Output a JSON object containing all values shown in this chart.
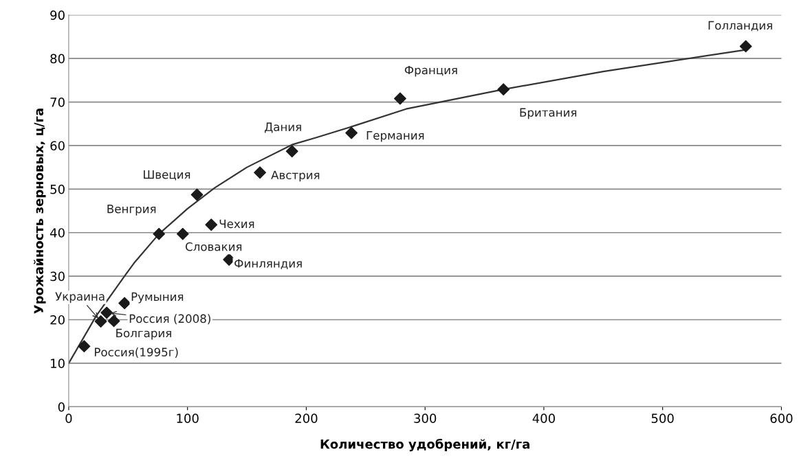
{
  "chart_data": {
    "type": "scatter",
    "xlabel": "Количество удобрений, кг/га",
    "ylabel": "Урожайность зерновых, ц/га",
    "xlim": [
      0,
      600
    ],
    "xticks": [
      0,
      100,
      200,
      300,
      400,
      500,
      600
    ],
    "ylim": [
      0,
      90
    ],
    "yticks": [
      0,
      10,
      20,
      30,
      40,
      50,
      60,
      70,
      80,
      90
    ],
    "grid": "y",
    "series": [
      {
        "type": "scatter",
        "color": "#1a1a1a",
        "marker": "diamond",
        "x": [
          570,
          279,
          366,
          238,
          188,
          161,
          108,
          76,
          96,
          120,
          135,
          47,
          32,
          27,
          38,
          13
        ],
        "values": [
          82.8,
          70.8,
          72.9,
          62.9,
          58.7,
          53.8,
          48.7,
          39.7,
          39.7,
          41.8,
          33.8,
          23.8,
          21.6,
          19.6,
          19.7,
          13.9
        ]
      },
      {
        "type": "line",
        "color": "#333333",
        "marker": "none",
        "line_style": "solid",
        "x": [
          0,
          23,
          48,
          55,
          76,
          100,
          123,
          150,
          188,
          208,
          240,
          284,
          366,
          450,
          570
        ],
        "values": [
          10,
          20.8,
          30.4,
          33,
          39.7,
          45.5,
          50.3,
          55,
          60.2,
          61.8,
          64.5,
          68.4,
          72.9,
          77,
          82
        ]
      }
    ],
    "annotations": [
      {
        "text": "Голландия",
        "x": 570,
        "y": 82.8
      },
      {
        "text": "Франция",
        "x": 279,
        "y": 70.8
      },
      {
        "text": "Британия",
        "x": 366,
        "y": 72.9
      },
      {
        "text": "Германия",
        "x": 238,
        "y": 62.9
      },
      {
        "text": "Дания",
        "x": 188,
        "y": 58.7
      },
      {
        "text": "Австрия",
        "x": 161,
        "y": 53.8
      },
      {
        "text": "Швеция",
        "x": 108,
        "y": 48.7
      },
      {
        "text": "Венгрия",
        "x": 76,
        "y": 39.7
      },
      {
        "text": "Словакия",
        "x": 96,
        "y": 39.7
      },
      {
        "text": "Чехия",
        "x": 120,
        "y": 41.8
      },
      {
        "text": "Финляндия",
        "x": 135,
        "y": 33.8
      },
      {
        "text": "Румыния",
        "x": 47,
        "y": 23.8
      },
      {
        "text": "Россия (2008)",
        "x": 32,
        "y": 21.6
      },
      {
        "text": "Украина",
        "x": 27,
        "y": 19.6
      },
      {
        "text": "Болгария",
        "x": 38,
        "y": 19.7
      },
      {
        "text": "Россия(1995г)",
        "x": 13,
        "y": 13.9
      }
    ]
  }
}
